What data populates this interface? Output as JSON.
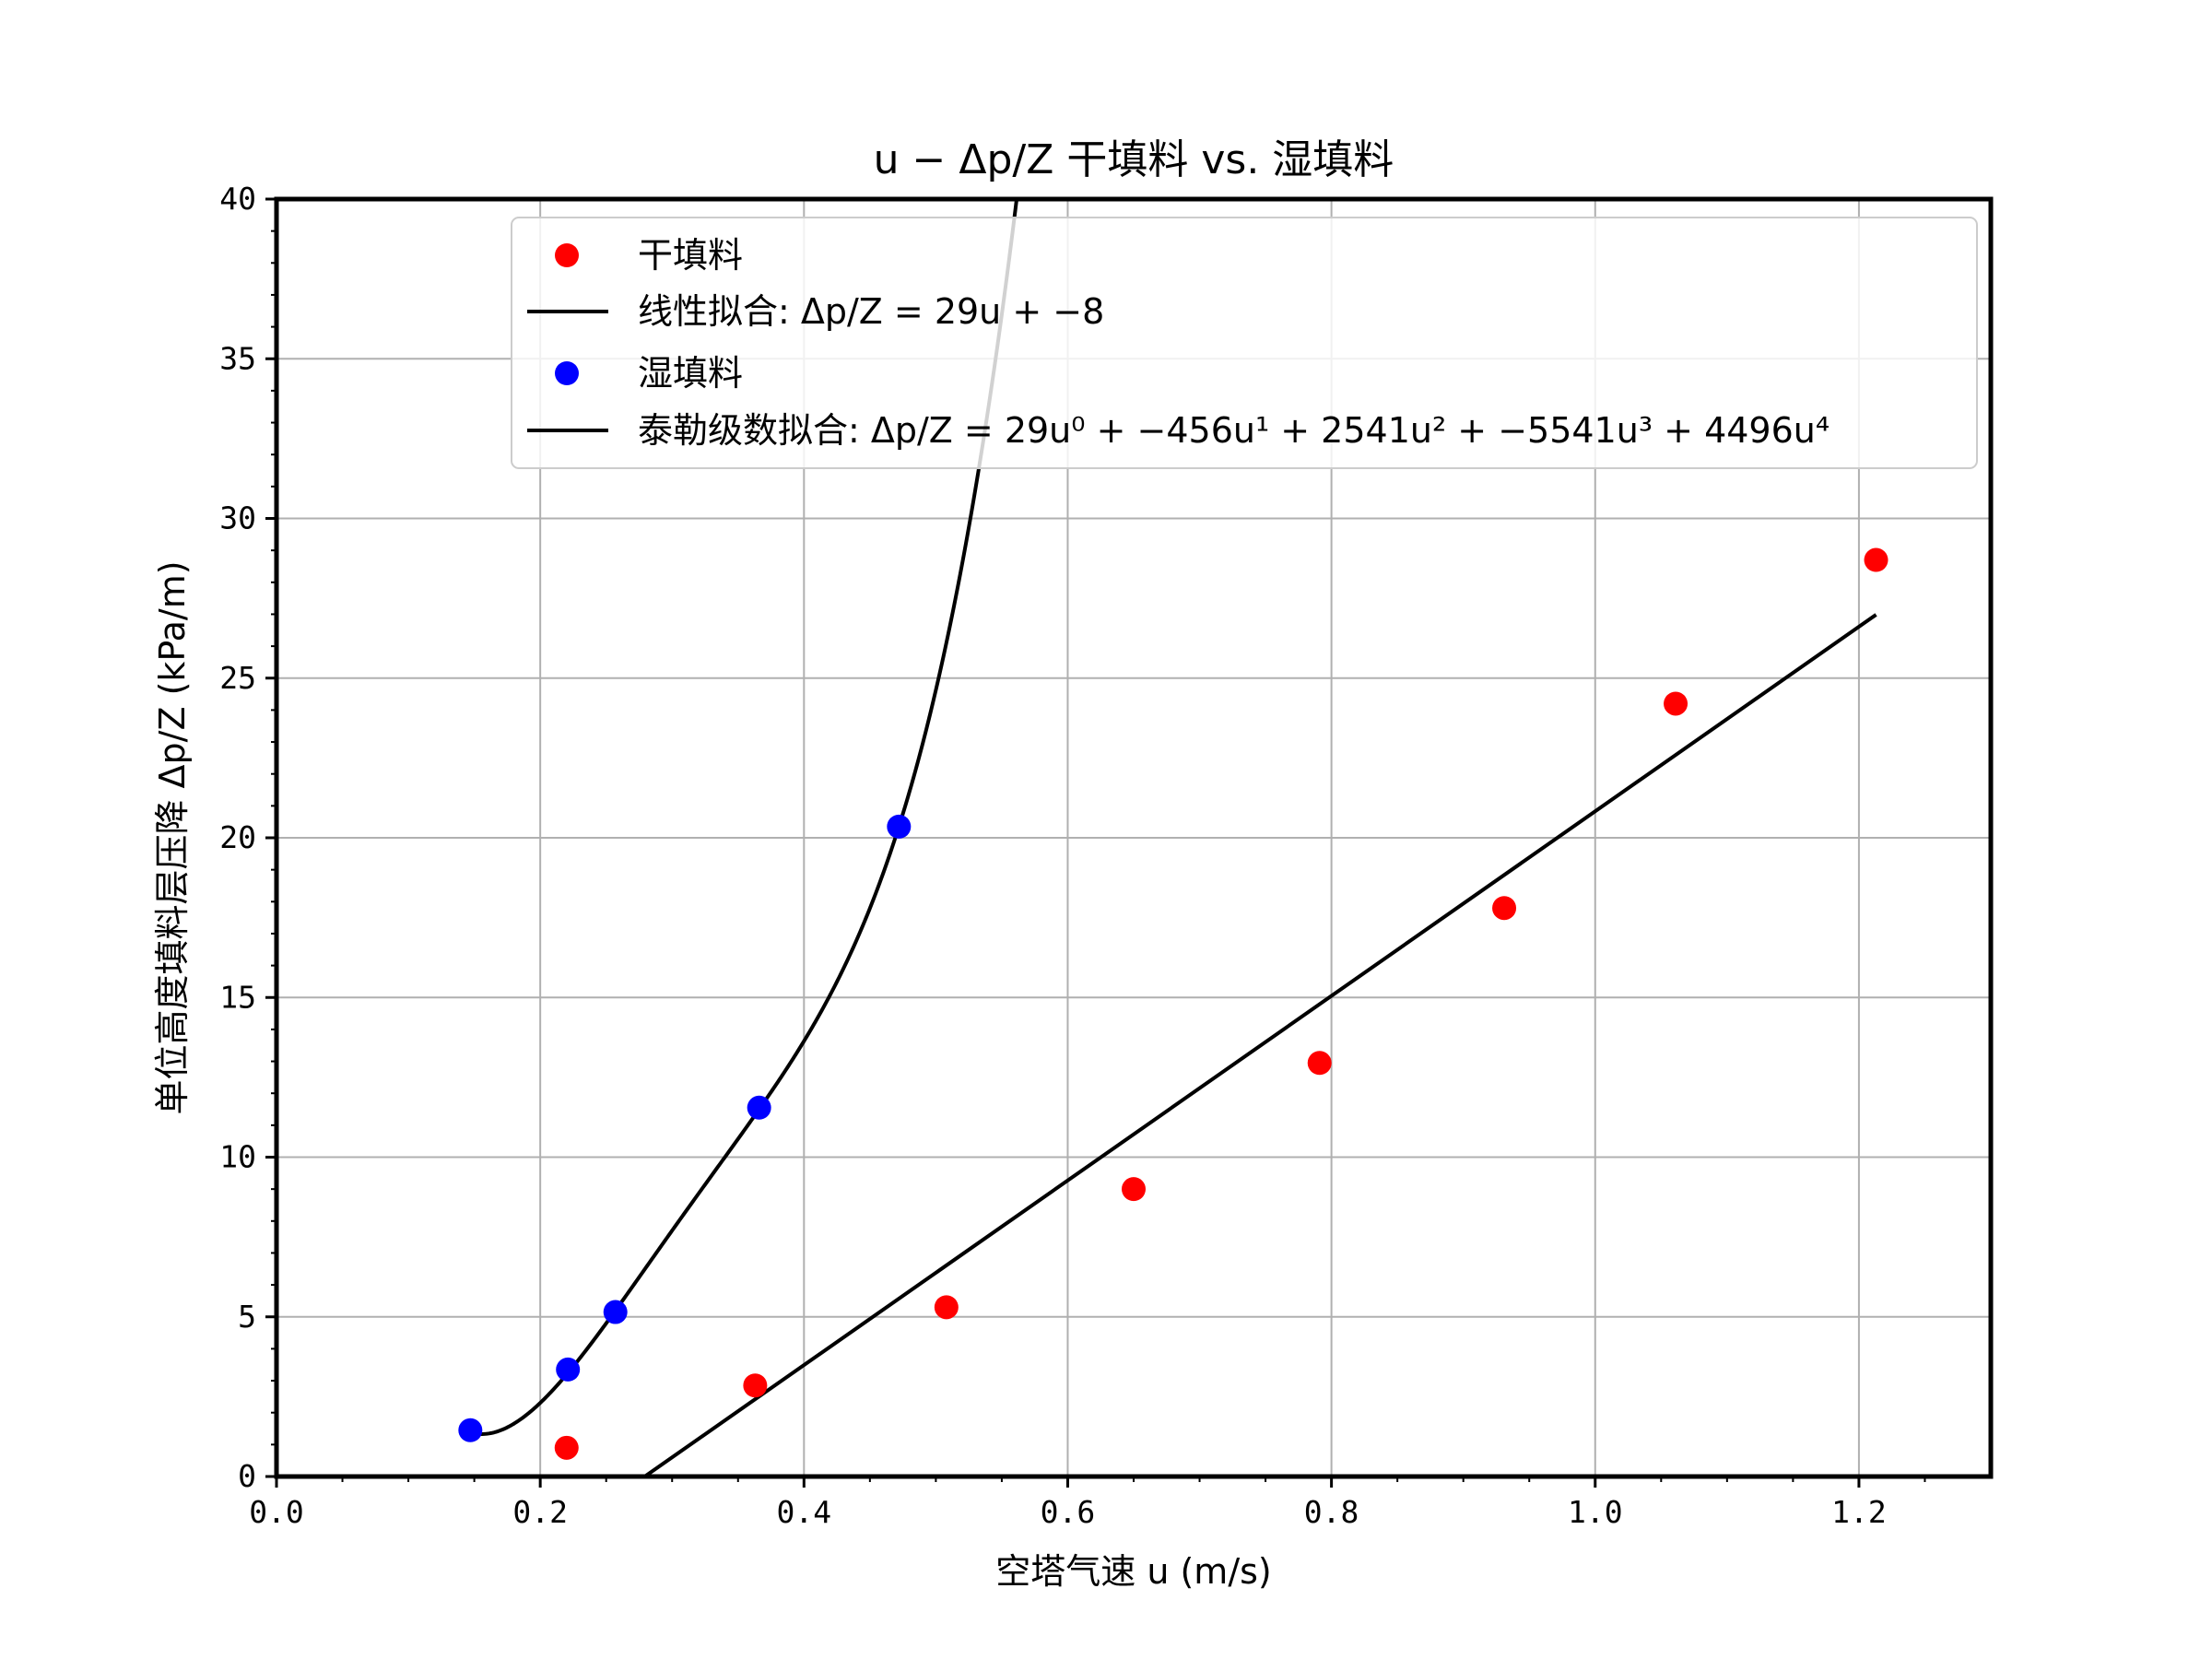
{
  "chart_data": {
    "type": "scatter",
    "title": "u − Δp/Z 干填料 vs. 湿填料",
    "xlabel": "空塔气速 u (m/s)",
    "ylabel": "单位高度填料层压降 Δp/Z (kPa/m)",
    "xlim": [
      0,
      1.3
    ],
    "ylim": [
      0,
      40
    ],
    "xticks": [
      0.0,
      0.2,
      0.4,
      0.6,
      0.8,
      1.0,
      1.2
    ],
    "xtick_labels": [
      "0.0",
      "0.2",
      "0.4",
      "0.6",
      "0.8",
      "1.0",
      "1.2"
    ],
    "yticks": [
      0,
      5,
      10,
      15,
      20,
      25,
      30,
      35,
      40
    ],
    "ytick_labels": [
      "0",
      "5",
      "10",
      "15",
      "20",
      "25",
      "30",
      "35",
      "40"
    ],
    "grid": true,
    "legend_position": "top-right",
    "series": [
      {
        "name": "干填料",
        "kind": "scatter",
        "color": "#ff0000",
        "x": [
          0.22,
          0.363,
          0.508,
          0.65,
          0.791,
          0.931,
          1.061,
          1.213
        ],
        "y": [
          0.9,
          2.85,
          5.3,
          9.0,
          12.95,
          17.8,
          24.2,
          28.7
        ]
      },
      {
        "name": "线性拟合: Δp/Z = 29u + −8",
        "kind": "line",
        "color": "#000000",
        "coefficients": [
          -8.07,
          28.9
        ],
        "x_range": [
          0.22,
          1.213
        ]
      },
      {
        "name": "湿填料",
        "kind": "scatter",
        "color": "#0000ff",
        "x": [
          0.147,
          0.221,
          0.257,
          0.366,
          0.472
        ],
        "y": [
          1.45,
          3.35,
          5.15,
          11.55,
          20.35
        ]
      },
      {
        "name": "泰勒级数拟合: Δp/Z = 29u⁰ + −456u¹ + 2541u² + −5541u³ + 4496u⁴",
        "kind": "line",
        "color": "#000000",
        "coefficients": [
          29,
          -456,
          2541,
          -5541,
          4496
        ],
        "x_range": [
          0.147,
          0.6
        ]
      }
    ]
  }
}
